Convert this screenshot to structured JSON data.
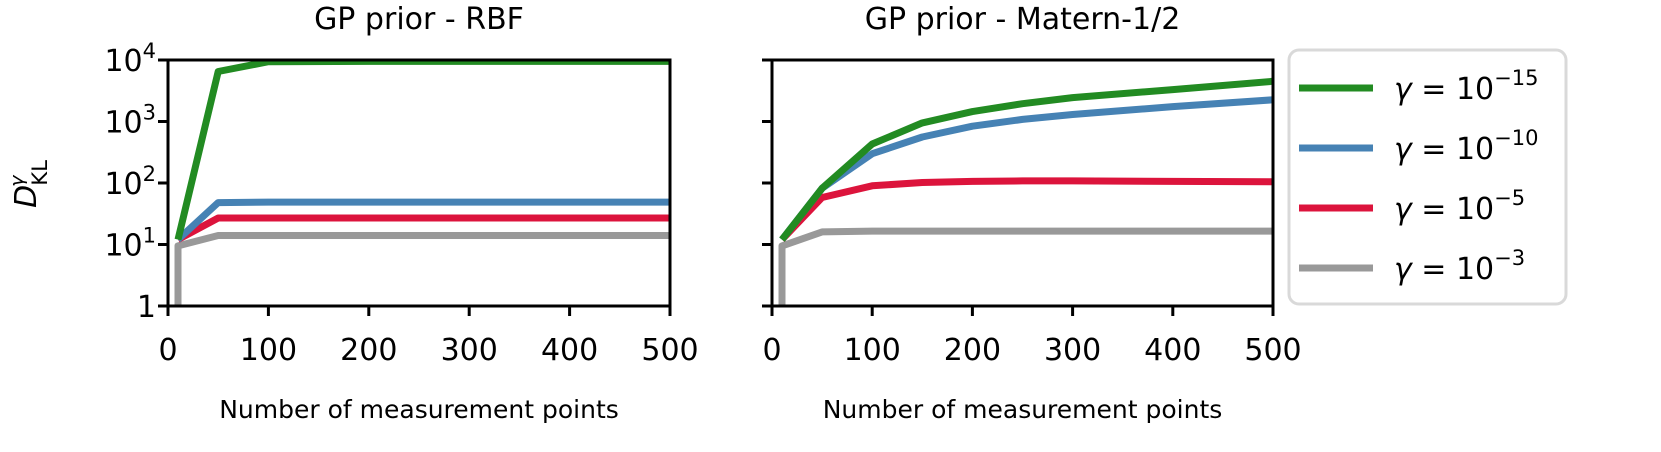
{
  "chart_data": [
    {
      "type": "line",
      "title": "GP prior - RBF",
      "xlabel": "Number of measurement points",
      "ylabel_main": "D",
      "ylabel_sub": "KL",
      "ylabel_sup": "γ",
      "yscale": "log",
      "xlim": [
        0,
        500
      ],
      "ylim": [
        1,
        10000
      ],
      "xticks": [
        "0",
        "100",
        "200",
        "300",
        "400",
        "500"
      ],
      "xtick_values": [
        0,
        100,
        200,
        300,
        400,
        500
      ],
      "yticks": [
        {
          "value": 1,
          "base": "1",
          "exp": ""
        },
        {
          "value": 10,
          "base": "10",
          "exp": "1"
        },
        {
          "value": 100,
          "base": "10",
          "exp": "2"
        },
        {
          "value": 1000,
          "base": "10",
          "exp": "3"
        },
        {
          "value": 10000,
          "base": "10",
          "exp": "4"
        }
      ],
      "series": [
        {
          "name": "γ = 10^-3",
          "color": "#999999",
          "points": [
            [
              10,
              0.1
            ],
            [
              10,
              9.5
            ],
            [
              50,
              14
            ],
            [
              100,
              14
            ],
            [
              200,
              14
            ],
            [
              300,
              14
            ],
            [
              400,
              14
            ],
            [
              500,
              14
            ]
          ]
        },
        {
          "name": "γ = 10^-5",
          "color": "#dc143c",
          "points": [
            [
              10,
              12
            ],
            [
              50,
              27
            ],
            [
              100,
              27
            ],
            [
              200,
              27
            ],
            [
              300,
              27
            ],
            [
              400,
              27
            ],
            [
              500,
              27
            ]
          ]
        },
        {
          "name": "γ = 10^-10",
          "color": "#4682b4",
          "points": [
            [
              10,
              12
            ],
            [
              50,
              48
            ],
            [
              100,
              49
            ],
            [
              200,
              49
            ],
            [
              300,
              49
            ],
            [
              400,
              49
            ],
            [
              500,
              49
            ]
          ]
        },
        {
          "name": "γ = 10^-15",
          "color": "#228b22",
          "points": [
            [
              10,
              12
            ],
            [
              50,
              6500
            ],
            [
              100,
              9400
            ],
            [
              200,
              9500
            ],
            [
              300,
              9500
            ],
            [
              400,
              9500
            ],
            [
              500,
              9500
            ]
          ]
        }
      ]
    },
    {
      "type": "line",
      "title": "GP prior - Matern-1/2",
      "xlabel": "Number of measurement points",
      "yscale": "log",
      "xlim": [
        0,
        500
      ],
      "ylim": [
        1,
        10000
      ],
      "xticks": [
        "0",
        "100",
        "200",
        "300",
        "400",
        "500"
      ],
      "xtick_values": [
        0,
        100,
        200,
        300,
        400,
        500
      ],
      "series": [
        {
          "name": "γ = 10^-3",
          "color": "#999999",
          "points": [
            [
              10,
              0.1
            ],
            [
              10,
              9.5
            ],
            [
              50,
              16
            ],
            [
              100,
              16.5
            ],
            [
              200,
              16.5
            ],
            [
              300,
              16.5
            ],
            [
              400,
              16.5
            ],
            [
              500,
              16.5
            ]
          ]
        },
        {
          "name": "γ = 10^-5",
          "color": "#dc143c",
          "points": [
            [
              10,
              12
            ],
            [
              50,
              58
            ],
            [
              100,
              90
            ],
            [
              150,
              102
            ],
            [
              200,
              106
            ],
            [
              250,
              108
            ],
            [
              300,
              108
            ],
            [
              400,
              106
            ],
            [
              500,
              105
            ]
          ]
        },
        {
          "name": "γ = 10^-10",
          "color": "#4682b4",
          "points": [
            [
              10,
              12
            ],
            [
              50,
              82
            ],
            [
              100,
              300
            ],
            [
              150,
              560
            ],
            [
              200,
              840
            ],
            [
              250,
              1080
            ],
            [
              300,
              1300
            ],
            [
              400,
              1750
            ],
            [
              500,
              2250
            ]
          ]
        },
        {
          "name": "γ = 10^-15",
          "color": "#228b22",
          "points": [
            [
              10,
              12
            ],
            [
              50,
              82
            ],
            [
              100,
              430
            ],
            [
              150,
              950
            ],
            [
              200,
              1450
            ],
            [
              250,
              1950
            ],
            [
              300,
              2450
            ],
            [
              400,
              3300
            ],
            [
              500,
              4500
            ]
          ]
        }
      ]
    }
  ],
  "legend": {
    "placement": "right",
    "items": [
      {
        "prefix": "γ = 10",
        "exp": "−15",
        "color": "#228b22"
      },
      {
        "prefix": "γ = 10",
        "exp": "−10",
        "color": "#4682b4"
      },
      {
        "prefix": "γ = 10",
        "exp": "−5",
        "color": "#dc143c"
      },
      {
        "prefix": "γ = 10",
        "exp": "−3",
        "color": "#999999"
      }
    ]
  }
}
